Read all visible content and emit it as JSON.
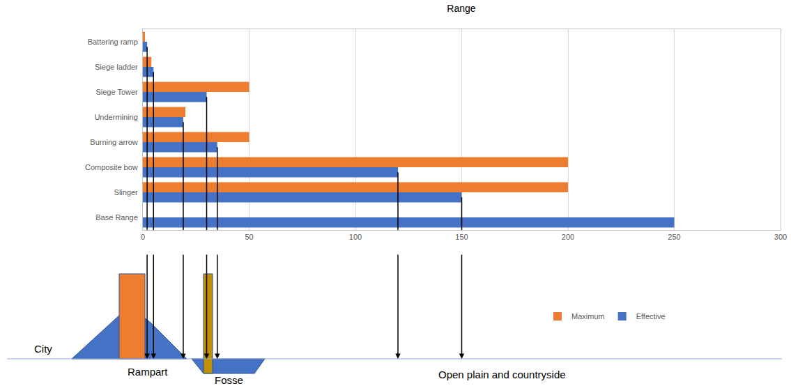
{
  "chart_data": {
    "type": "bar",
    "orientation": "horizontal",
    "title": "Range",
    "categories": [
      "Battering ramp",
      "Siege ladder",
      "Siege Tower",
      "Undermining",
      "Burning arrow",
      "Composite bow",
      "Slinger",
      "Base Range"
    ],
    "series": [
      {
        "name": "Maximum",
        "color": "#ED7D31",
        "values": [
          1,
          4,
          50,
          20,
          50,
          200,
          200,
          null
        ]
      },
      {
        "name": "Effective",
        "color": "#4472C4",
        "values": [
          2,
          5,
          30,
          19,
          35,
          120,
          150,
          250
        ]
      }
    ],
    "xlim": [
      0,
      300
    ],
    "xticks": [
      0,
      50,
      100,
      150,
      200,
      250,
      300
    ],
    "grid": true,
    "legend": "bottom"
  },
  "diagram": {
    "labels": {
      "city": "City",
      "rampart": "Rampart",
      "fosse": "Fosse",
      "plain": "Open plain and countryside"
    }
  }
}
